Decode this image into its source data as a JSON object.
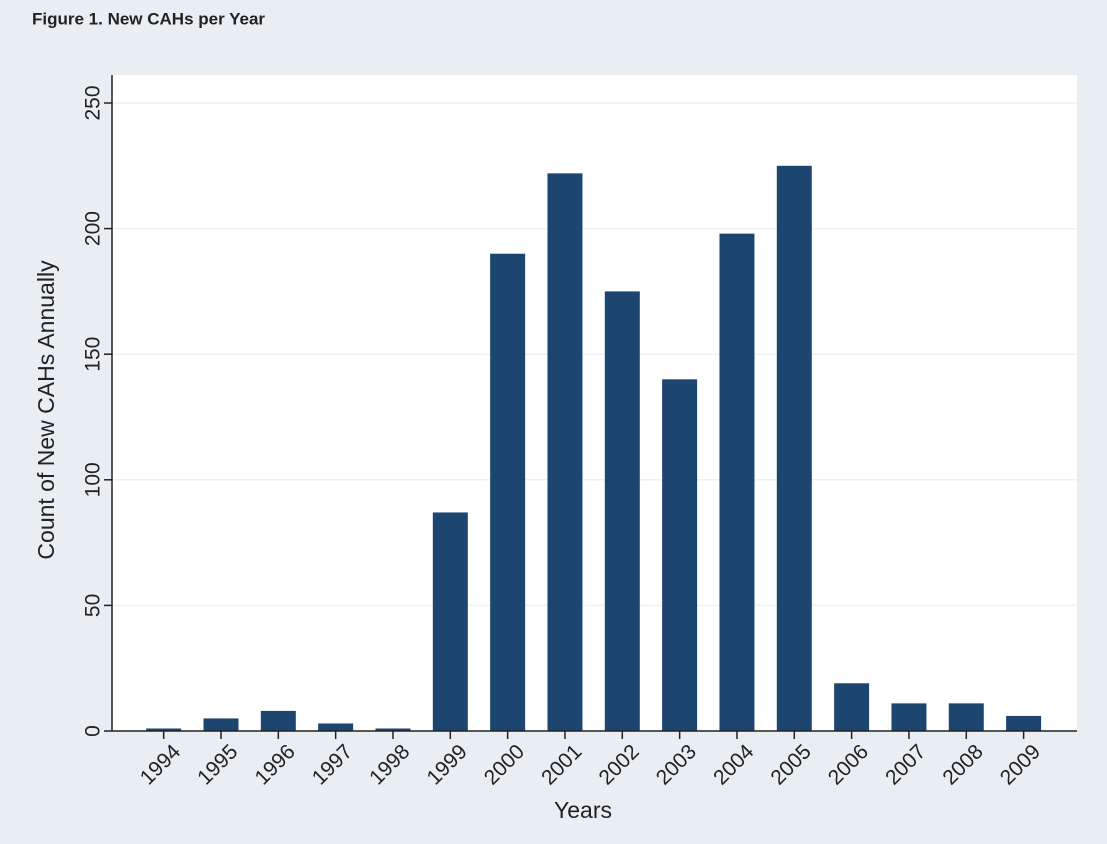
{
  "chart_data": {
    "type": "bar",
    "title": "Figure 1. New CAHs per Year",
    "x_label": "Years",
    "y_label": "Count of New CAHs Annually",
    "categories": [
      "1994",
      "1995",
      "1996",
      "1997",
      "1998",
      "1999",
      "2000",
      "2001",
      "2002",
      "2003",
      "2004",
      "2005",
      "2006",
      "2007",
      "2008",
      "2009"
    ],
    "values": [
      1,
      5,
      8,
      3,
      1,
      87,
      190,
      222,
      175,
      140,
      198,
      225,
      19,
      11,
      11,
      6
    ],
    "color": "#1c4670",
    "ylim": [
      0,
      250
    ],
    "yticks": [
      0,
      50,
      100,
      150,
      200,
      250
    ],
    "grid": true
  }
}
